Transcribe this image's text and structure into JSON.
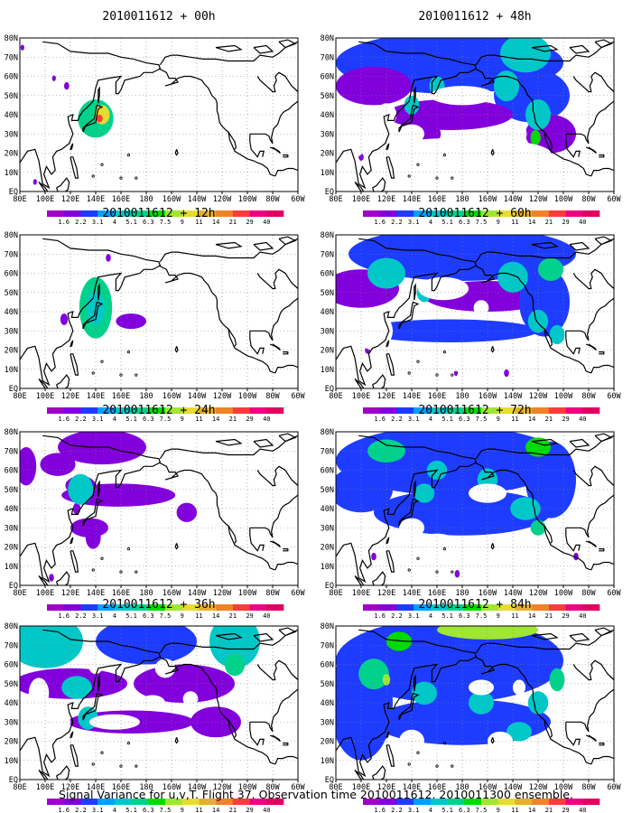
{
  "caption": "Signal Variance for u,v,T. Flight 37. Observation time 2010011612. 2010011300 ensemble.",
  "chart_data": {
    "type": "heatmap",
    "panel_order": "column-major",
    "x_ticks": [
      "80E",
      "100E",
      "120E",
      "140E",
      "160E",
      "180",
      "160W",
      "140W",
      "120W",
      "100W",
      "80W",
      "60W"
    ],
    "y_ticks": [
      "EQ",
      "10N",
      "20N",
      "30N",
      "40N",
      "50N",
      "60N",
      "70N",
      "80N"
    ],
    "colorbar": {
      "levels": [
        "1.6",
        "2.2",
        "3.1",
        "4",
        "5.1",
        "6.3",
        "7.5",
        "9",
        "11",
        "14",
        "21",
        "29",
        "40"
      ],
      "colors": [
        "#a000c8",
        "#8200dc",
        "#1e3cff",
        "#00a0ff",
        "#00c8c8",
        "#00d28c",
        "#00dc00",
        "#a0e632",
        "#e6dc32",
        "#e6af2d",
        "#f08228",
        "#fa3c3c",
        "#f00082"
      ]
    },
    "panels": [
      {
        "title": "2010011612 + 00h",
        "lead_h": 0,
        "blobs": [
          [
            140,
            38,
            14,
            10,
            5
          ],
          [
            145,
            40,
            6,
            5,
            8
          ],
          [
            143,
            38,
            2.5,
            2,
            11
          ],
          [
            117,
            55,
            2,
            2,
            1
          ],
          [
            107,
            59,
            1.5,
            1.5,
            1
          ],
          [
            82,
            75,
            1.5,
            1.5,
            1
          ],
          [
            92,
            5,
            1.5,
            1.5,
            1
          ]
        ]
      },
      {
        "title": "2010011612 + 12h",
        "lead_h": 12,
        "blobs": [
          [
            140,
            42,
            13,
            16,
            5
          ],
          [
            140,
            42,
            7,
            9,
            4
          ],
          [
            168,
            35,
            12,
            4,
            1
          ],
          [
            115,
            36,
            3,
            3,
            1
          ],
          [
            150,
            68,
            2,
            2,
            1
          ]
        ]
      },
      {
        "title": "2010011612 + 24h",
        "lead_h": 24,
        "blobs": [
          [
            85,
            62,
            8,
            10,
            1
          ],
          [
            110,
            63,
            14,
            6,
            1
          ],
          [
            145,
            72,
            35,
            9,
            1
          ],
          [
            158,
            47,
            45,
            6,
            1
          ],
          [
            125,
            40,
            3,
            3,
            1
          ],
          [
            128,
            52,
            12,
            5,
            1
          ],
          [
            135,
            30,
            15,
            5,
            1
          ],
          [
            128,
            50,
            10,
            8,
            4
          ],
          [
            138,
            25,
            6,
            6,
            1
          ],
          [
            105,
            4,
            2,
            2,
            1
          ],
          [
            212,
            38,
            8,
            5,
            1
          ]
        ]
      },
      {
        "title": "2010011612 + 36h",
        "lead_h": 36,
        "blobs": [
          [
            100,
            72,
            30,
            14,
            4
          ],
          [
            180,
            72,
            40,
            12,
            2
          ],
          [
            250,
            72,
            20,
            14,
            4
          ],
          [
            120,
            50,
            45,
            8,
            1
          ],
          [
            210,
            50,
            40,
            10,
            1
          ],
          [
            168,
            30,
            50,
            6,
            1
          ],
          [
            235,
            30,
            20,
            8,
            1
          ],
          [
            125,
            48,
            12,
            6,
            4
          ],
          [
            134,
            32,
            8,
            6,
            4
          ],
          [
            250,
            60,
            8,
            6,
            5
          ]
        ]
      },
      {
        "title": "2010011612 + 48h",
        "lead_h": 48,
        "blobs": [
          [
            170,
            67,
            90,
            16,
            2
          ],
          [
            235,
            50,
            30,
            14,
            2
          ],
          [
            250,
            30,
            20,
            10,
            1
          ],
          [
            110,
            55,
            30,
            10,
            1
          ],
          [
            170,
            40,
            50,
            8,
            1
          ],
          [
            230,
            72,
            20,
            10,
            4
          ],
          [
            215,
            55,
            10,
            8,
            4
          ],
          [
            240,
            40,
            10,
            8,
            4
          ],
          [
            140,
            45,
            6,
            5,
            4
          ],
          [
            160,
            55,
            6,
            5,
            4
          ],
          [
            155,
            30,
            8,
            5,
            1
          ],
          [
            238,
            28,
            4,
            4,
            6
          ],
          [
            100,
            18,
            2,
            2,
            1
          ],
          [
            193,
            15,
            1.5,
            1.5,
            1
          ]
        ]
      },
      {
        "title": "2010011612 + 60h",
        "lead_h": 60,
        "blobs": [
          [
            180,
            70,
            90,
            14,
            2
          ],
          [
            100,
            52,
            30,
            10,
            1
          ],
          [
            200,
            48,
            50,
            8,
            1
          ],
          [
            170,
            30,
            70,
            6,
            2
          ],
          [
            245,
            45,
            20,
            18,
            2
          ],
          [
            120,
            60,
            15,
            8,
            4
          ],
          [
            220,
            58,
            12,
            8,
            4
          ],
          [
            250,
            62,
            10,
            6,
            5
          ],
          [
            240,
            35,
            8,
            6,
            4
          ],
          [
            150,
            50,
            6,
            5,
            4
          ],
          [
            255,
            28,
            6,
            5,
            4
          ],
          [
            105,
            20,
            2,
            2,
            1
          ],
          [
            175,
            8,
            1.5,
            1.5,
            1
          ],
          [
            215,
            8,
            2,
            2,
            1
          ]
        ]
      },
      {
        "title": "2010011612 + 72h",
        "lead_h": 72,
        "blobs": [
          [
            170,
            65,
            90,
            18,
            2
          ],
          [
            180,
            38,
            70,
            12,
            2
          ],
          [
            100,
            50,
            25,
            12,
            2
          ],
          [
            250,
            55,
            20,
            20,
            2
          ],
          [
            120,
            70,
            15,
            6,
            5
          ],
          [
            240,
            72,
            10,
            5,
            6
          ],
          [
            150,
            48,
            8,
            5,
            4
          ],
          [
            160,
            60,
            8,
            5,
            4
          ],
          [
            200,
            55,
            8,
            6,
            4
          ],
          [
            230,
            40,
            12,
            6,
            4
          ],
          [
            240,
            30,
            6,
            4,
            5
          ],
          [
            110,
            15,
            2,
            2,
            1
          ],
          [
            176,
            6,
            2,
            2,
            1
          ],
          [
            270,
            15,
            2,
            2,
            1
          ]
        ]
      },
      {
        "title": "2010011612 + 84h",
        "lead_h": 84,
        "blobs": [
          [
            170,
            62,
            90,
            22,
            2
          ],
          [
            180,
            30,
            70,
            12,
            2
          ],
          [
            100,
            40,
            25,
            30,
            2
          ],
          [
            200,
            78,
            40,
            5,
            7
          ],
          [
            130,
            72,
            10,
            5,
            6
          ],
          [
            110,
            55,
            12,
            8,
            5
          ],
          [
            120,
            52,
            3,
            3,
            7
          ],
          [
            150,
            45,
            10,
            6,
            4
          ],
          [
            195,
            40,
            10,
            6,
            4
          ],
          [
            240,
            40,
            8,
            6,
            4
          ],
          [
            225,
            25,
            10,
            5,
            4
          ],
          [
            255,
            52,
            6,
            6,
            5
          ]
        ]
      }
    ],
    "holes": [
      [],
      [],
      [],
      [
        [
          155,
          30,
          20,
          4
        ],
        [
          185,
          40,
          10,
          4
        ],
        [
          215,
          42,
          6,
          4
        ],
        [
          140,
          60,
          6,
          5
        ],
        [
          195,
          58,
          8,
          5
        ],
        [
          108,
          30,
          12,
          8
        ],
        [
          95,
          45,
          8,
          8
        ]
      ],
      [
        [
          180,
          50,
          25,
          5
        ],
        [
          140,
          30,
          10,
          5
        ],
        [
          120,
          40,
          8,
          6
        ],
        [
          95,
          30,
          12,
          12
        ],
        [
          200,
          28,
          10,
          4
        ],
        [
          225,
          30,
          6,
          5
        ],
        [
          180,
          20,
          70,
          8
        ]
      ],
      [
        [
          165,
          52,
          20,
          6
        ],
        [
          140,
          42,
          10,
          5
        ],
        [
          110,
          30,
          15,
          10
        ],
        [
          205,
          18,
          15,
          5
        ],
        [
          195,
          42,
          6,
          4
        ],
        [
          180,
          15,
          70,
          6
        ]
      ],
      [
        [
          200,
          48,
          15,
          5
        ],
        [
          140,
          30,
          10,
          5
        ],
        [
          230,
          15,
          20,
          8
        ],
        [
          160,
          22,
          15,
          5
        ],
        [
          100,
          25,
          10,
          10
        ]
      ],
      [
        [
          195,
          48,
          10,
          4
        ],
        [
          225,
          48,
          5,
          4
        ],
        [
          140,
          20,
          10,
          6
        ],
        [
          265,
          15,
          20,
          8
        ],
        [
          210,
          20,
          10,
          5
        ]
      ]
    ]
  }
}
